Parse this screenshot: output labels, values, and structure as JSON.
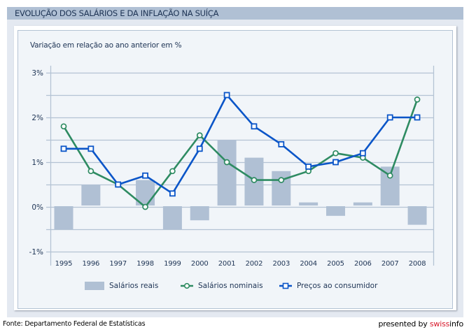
{
  "header": {
    "title": "EVOLUÇÃO DOS SALÁRIOS E DA INFLAÇÃO NA SUÍÇA"
  },
  "footer": {
    "source": "Fonte: Departamento Federal de Estatísticas",
    "presented_by": "presented by ",
    "brand_red": "swiss",
    "brand_rest": "info"
  },
  "colors": {
    "bars": "#b0c0d4",
    "nominal": "#2e8b62",
    "cpi": "#0a55c8",
    "grid": "#b4c3d4",
    "text": "#1d3354",
    "brand": "#d7182a"
  },
  "chart_data": {
    "type": "bar+line",
    "title": "EVOLUÇÃO DOS SALÁRIOS E DA INFLAÇÃO NA SUÍÇA",
    "subtitle": "Variação em relação ao ano anterior em %",
    "xlabel": "",
    "ylabel": "",
    "ylim": [
      -1,
      3
    ],
    "yticks": [
      3,
      2,
      1,
      0,
      -1
    ],
    "ytick_labels": [
      "3%",
      "2%",
      "1%",
      "0%",
      "-1%"
    ],
    "grid": true,
    "grid_step": 0.5,
    "categories": [
      "1995",
      "1996",
      "1997",
      "1998",
      "1999",
      "2000",
      "2001",
      "2002",
      "2003",
      "2004",
      "2005",
      "2006",
      "2007",
      "2008"
    ],
    "series": [
      {
        "name": "Salários reais",
        "type": "bar",
        "values": [
          -0.5,
          0.5,
          0.0,
          0.6,
          -0.5,
          -0.3,
          1.5,
          1.1,
          0.8,
          0.1,
          -0.2,
          0.1,
          0.9,
          -0.4
        ]
      },
      {
        "name": "Salários nominais",
        "type": "line",
        "marker": "circle",
        "values": [
          1.8,
          0.8,
          0.5,
          0.0,
          0.8,
          1.6,
          1.0,
          0.6,
          0.6,
          0.8,
          1.2,
          1.1,
          0.7,
          2.4
        ]
      },
      {
        "name": "Preços ao consumidor",
        "type": "line",
        "marker": "square",
        "values": [
          1.3,
          1.3,
          0.5,
          0.7,
          0.3,
          1.3,
          2.5,
          1.8,
          1.4,
          0.9,
          1.0,
          1.2,
          2.0,
          2.0
        ]
      }
    ],
    "legend_position": "bottom"
  }
}
